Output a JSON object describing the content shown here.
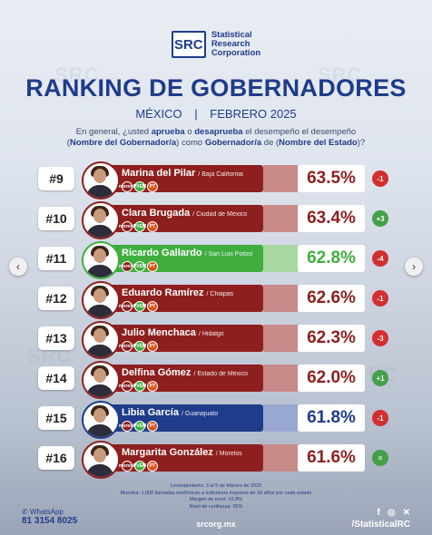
{
  "brand": {
    "logo_letters": "SRC",
    "line1": "Statistical",
    "line2": "Research",
    "line3": "Corporation"
  },
  "title": "RANKING DE GOBERNADORES",
  "subtitle": {
    "country": "MÉXICO",
    "separator": "|",
    "date": "FEBRERO 2025"
  },
  "question": {
    "p1": "En general, ¿usted ",
    "approve": "aprueba",
    "p2": " o ",
    "disapprove": "desaprueba",
    "p3": " el desempeño el desempeño",
    "p4": "(",
    "gov_name": "Nombre del Gobernador/a",
    "p5": ") como ",
    "gov_title": "Gobernador/a",
    "p6": " de (",
    "state_name": "Nombre del Estado",
    "p7": ")?"
  },
  "rows": [
    {
      "rank": "#9",
      "name": "Marina del Pilar",
      "state": "/ Baja California",
      "pct": "63.5%",
      "change": "-1",
      "bar_color": "#8e1f1f",
      "fill_color": "#c98a8a",
      "change_color": "#d32f2f",
      "text_color": "#8e1f1f"
    },
    {
      "rank": "#10",
      "name": "Clara Brugada",
      "state": "/ Ciudad de México",
      "pct": "63.4%",
      "change": "+3",
      "bar_color": "#8e1f1f",
      "fill_color": "#c98a8a",
      "change_color": "#43a047",
      "text_color": "#8e1f1f"
    },
    {
      "rank": "#11",
      "name": "Ricardo Gallardo",
      "state": "/ San Luis Potosí",
      "pct": "62.8%",
      "change": "-4",
      "bar_color": "#3fae3f",
      "fill_color": "#a7d8a0",
      "change_color": "#d32f2f",
      "text_color": "#3fae3f"
    },
    {
      "rank": "#12",
      "name": "Eduardo Ramírez",
      "state": "/ Chiapas",
      "pct": "62.6%",
      "change": "-1",
      "bar_color": "#8e1f1f",
      "fill_color": "#c98a8a",
      "change_color": "#d32f2f",
      "text_color": "#8e1f1f"
    },
    {
      "rank": "#13",
      "name": "Julio Menchaca",
      "state": "/ Hidalgo",
      "pct": "62.3%",
      "change": "-3",
      "bar_color": "#8e1f1f",
      "fill_color": "#c98a8a",
      "change_color": "#d32f2f",
      "text_color": "#8e1f1f"
    },
    {
      "rank": "#14",
      "name": "Delfina Gómez",
      "state": "/ Estado de México",
      "pct": "62.0%",
      "change": "+1",
      "bar_color": "#8e1f1f",
      "fill_color": "#c98a8a",
      "change_color": "#43a047",
      "text_color": "#8e1f1f"
    },
    {
      "rank": "#15",
      "name": "Libia García",
      "state": "/ Guanajuato",
      "pct": "61.8%",
      "change": "-1",
      "bar_color": "#1f3c8a",
      "fill_color": "#98a8d0",
      "change_color": "#d32f2f",
      "text_color": "#1f3c8a"
    },
    {
      "rank": "#16",
      "name": "Margarita González",
      "state": "/ Morelos",
      "pct": "61.6%",
      "change": "=",
      "bar_color": "#8e1f1f",
      "fill_color": "#c98a8a",
      "change_color": "#43a047",
      "text_color": "#8e1f1f"
    }
  ],
  "methodology": {
    "line1": "Levantamiento: 3 al 5 de febrero de 2025",
    "line2": "Muestra: 1,000 llamadas telefónicas a individuos mayores de 18 años por cada estado",
    "line3": "Margen de error: ±3.8%",
    "line4": "Nivel de confianza: 95%"
  },
  "footer": {
    "whatsapp_label": "WhatsApp",
    "whatsapp_number": "81 3154 8025",
    "website": "srcorg.mx",
    "handle": "/StatisticalRC"
  },
  "party_labels": [
    "morena",
    "PVEM",
    "PT"
  ]
}
